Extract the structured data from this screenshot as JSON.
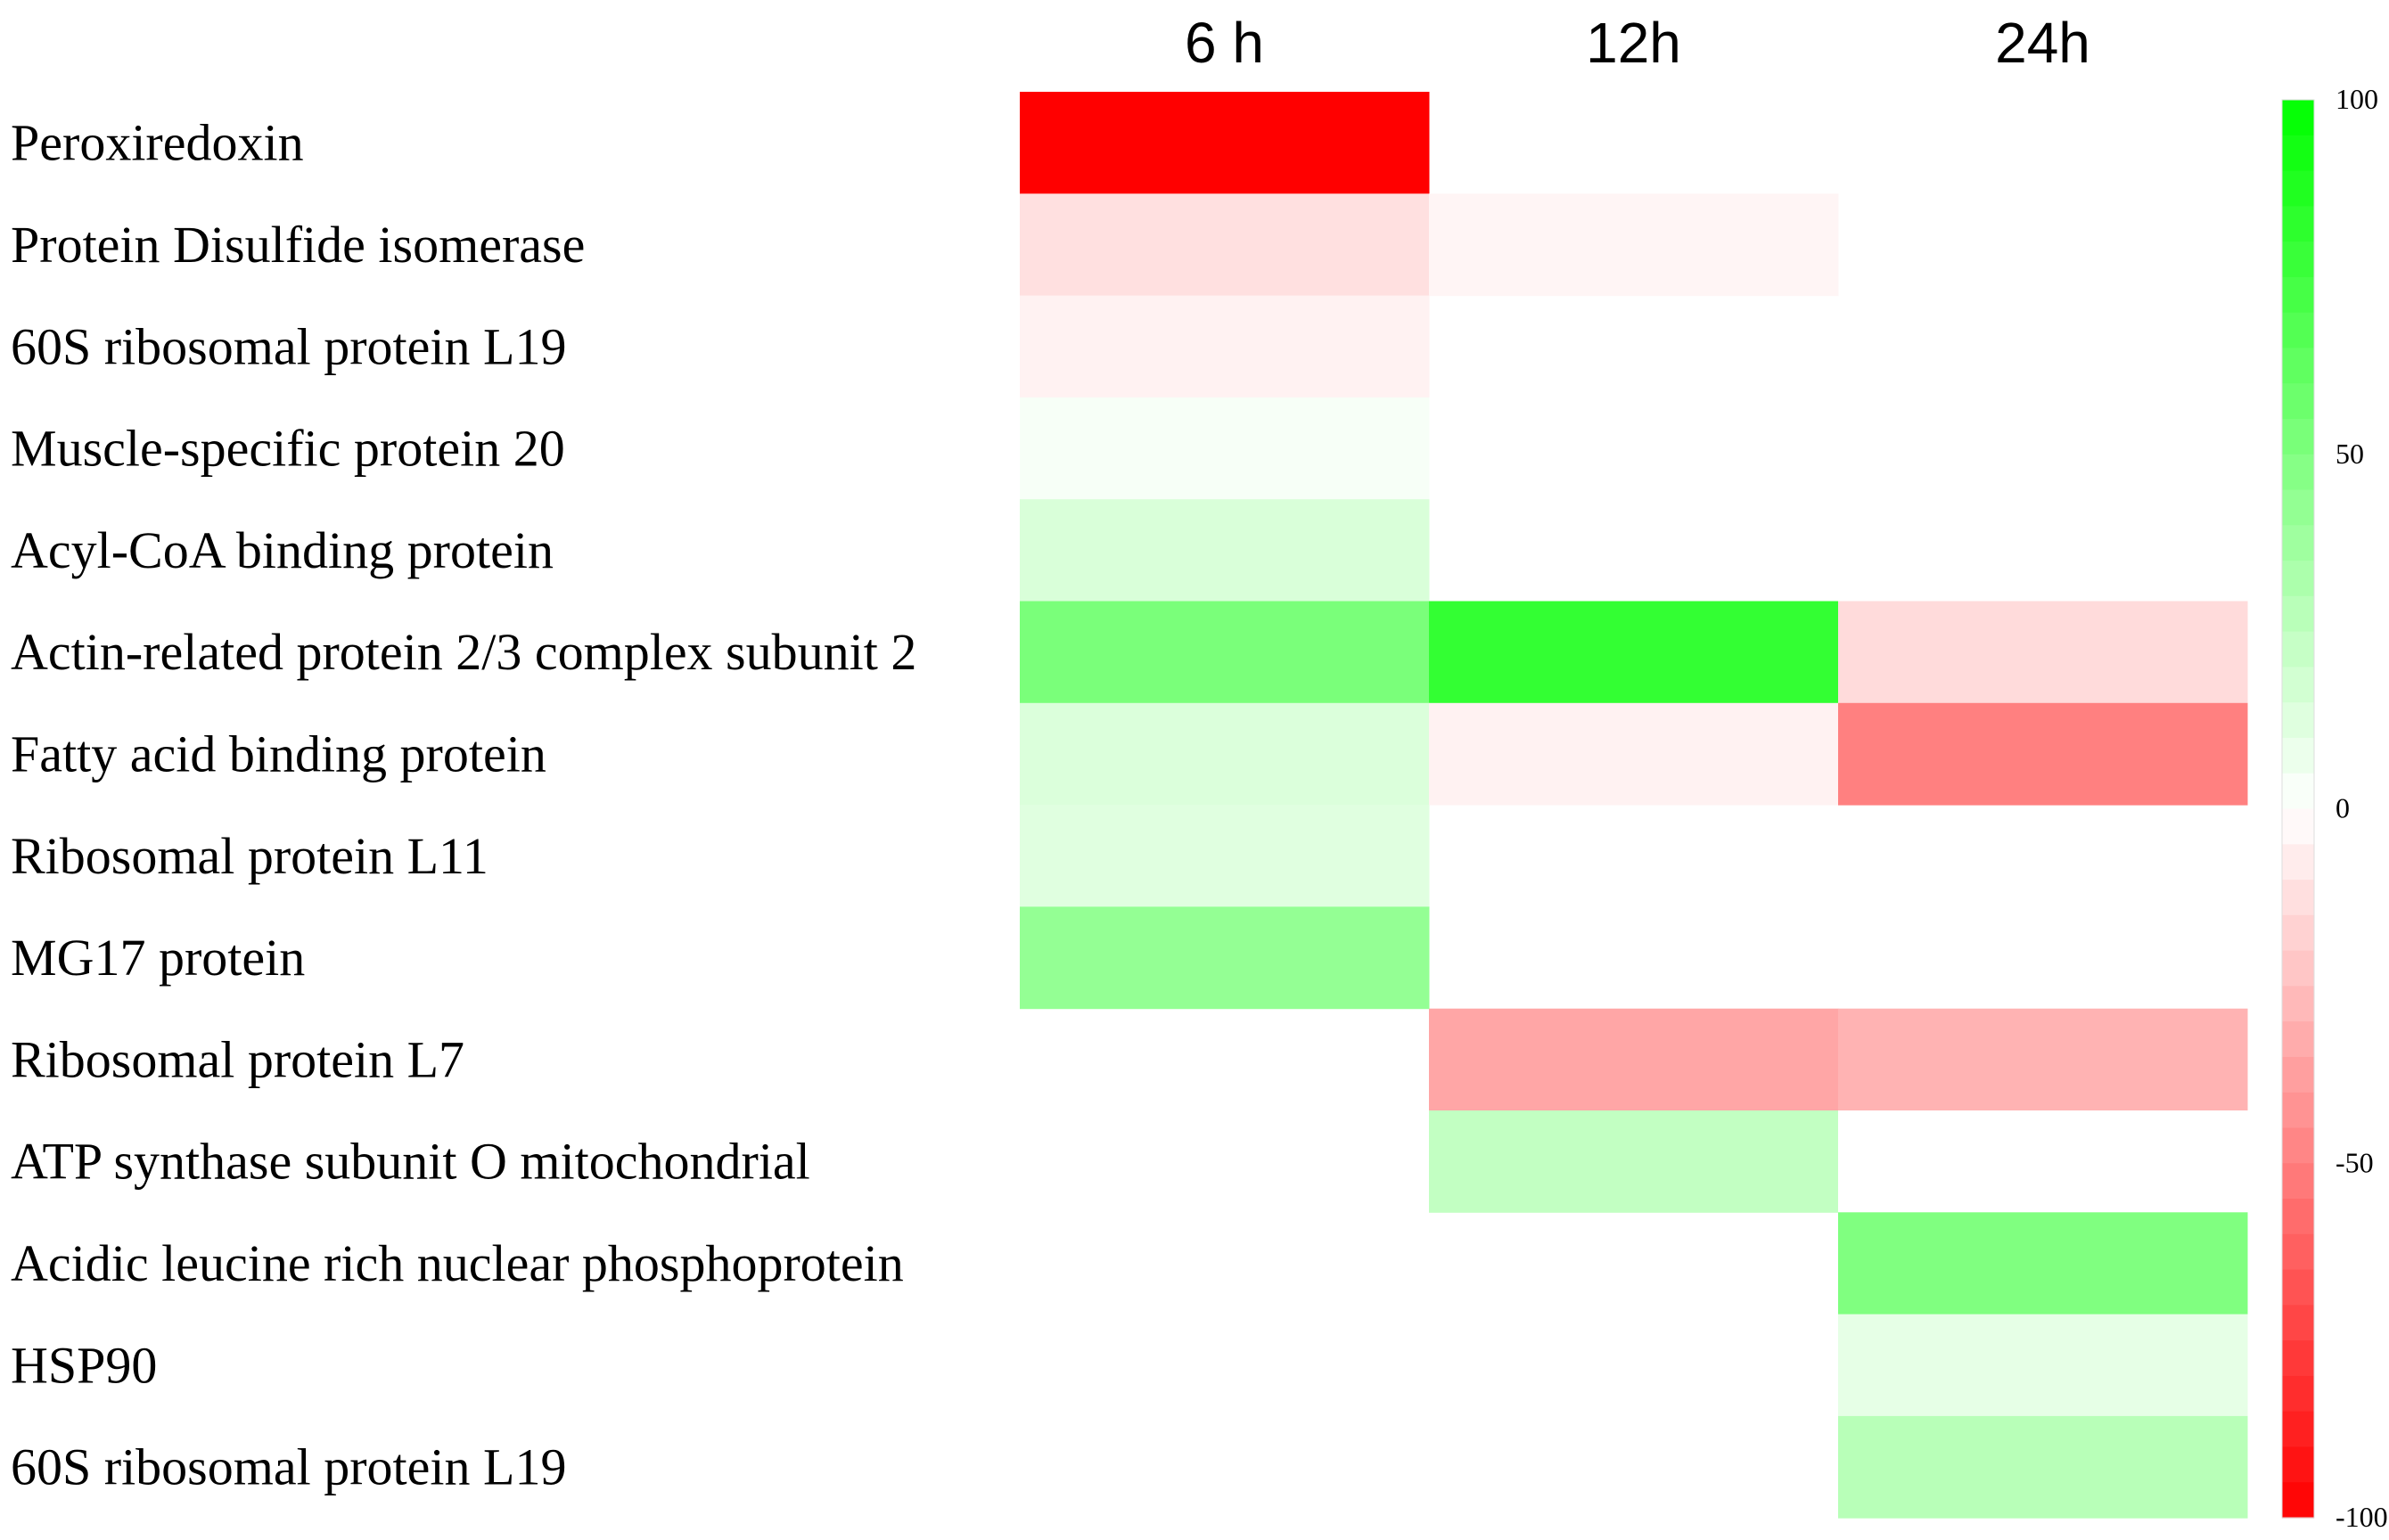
{
  "chart_data": {
    "type": "heatmap",
    "title": "",
    "columns": [
      "6 h",
      "12h",
      "24h"
    ],
    "rows": [
      "Peroxiredoxin",
      "Protein Disulfide isomerase",
      "60S ribosomal protein L19",
      "Muscle-specific protein 20",
      "Acyl-CoA binding protein",
      "Actin-related protein 2/3 complex subunit 2",
      "Fatty acid binding protein",
      "Ribosomal protein L11",
      "MG17 protein",
      "Ribosomal protein L7",
      "ATP synthase subunit O mitochondrial",
      "Acidic leucine rich nuclear phosphoprotein",
      "HSP90",
      "60S ribosomal protein L19"
    ],
    "values": [
      [
        -100,
        null,
        null
      ],
      [
        -12,
        -4,
        null
      ],
      [
        -5,
        null,
        null
      ],
      [
        3,
        null,
        null
      ],
      [
        15,
        null,
        null
      ],
      [
        52,
        80,
        -14
      ],
      [
        14,
        -5,
        -50
      ],
      [
        12,
        null,
        null
      ],
      [
        42,
        null,
        null
      ],
      [
        null,
        -35,
        -30
      ],
      [
        null,
        24,
        0
      ],
      [
        null,
        null,
        50
      ],
      [
        null,
        null,
        10
      ],
      [
        null,
        null,
        28
      ]
    ],
    "colorbar": {
      "min": -100,
      "max": 100,
      "ticks": [
        "100",
        "50",
        "0",
        "-50",
        "-100"
      ],
      "high_color": "#00ff00",
      "low_color": "#ff0000",
      "mid_color": "#ffffff"
    }
  }
}
